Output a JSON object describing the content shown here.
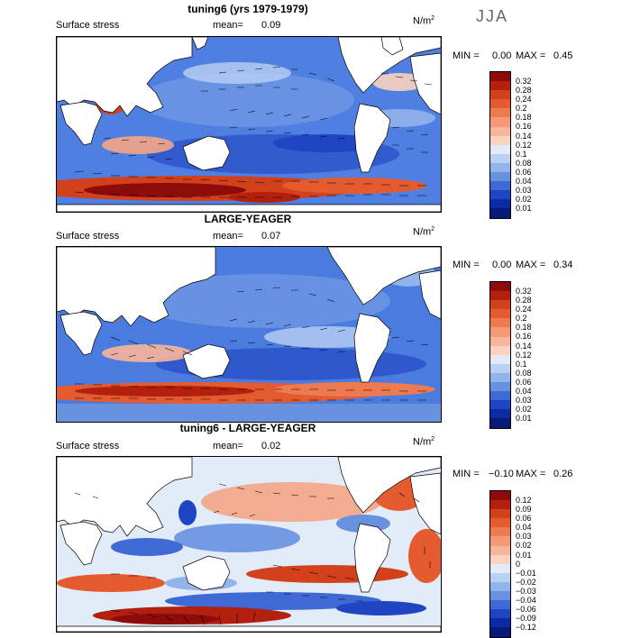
{
  "season": "JJA",
  "panels": [
    {
      "title": "tuning6 (yrs 1979-1979)",
      "field": "Surface stress",
      "mean_label": "mean=",
      "mean": "0.09",
      "units": "N/m",
      "units_sup": "2",
      "min_label": "MIN =",
      "min": "0.00",
      "max_label": "MAX =",
      "max": "0.45",
      "scale": "sequential",
      "levels": [
        "0.32",
        "0.28",
        "0.24",
        "0.2",
        "0.18",
        "0.16",
        "0.14",
        "0.12",
        "0.1",
        "0.08",
        "0.06",
        "0.04",
        "0.03",
        "0.02",
        "0.01"
      ],
      "colors": [
        "#8c0c0c",
        "#b3200e",
        "#d2401c",
        "#e55b30",
        "#ee7a52",
        "#f49878",
        "#f7b59b",
        "#f9d3c0",
        "#e2ecf9",
        "#b9d1f3",
        "#91b4ec",
        "#6891e0",
        "#3f69d4",
        "#1f45c2",
        "#0e2aa3",
        "#061a78"
      ]
    },
    {
      "title": "LARGE-YEAGER",
      "field": "Surface stress",
      "mean_label": "mean=",
      "mean": "0.07",
      "units": "N/m",
      "units_sup": "2",
      "min_label": "MIN =",
      "min": "0.00",
      "max_label": "MAX =",
      "max": "0.34",
      "scale": "sequential",
      "levels": [
        "0.32",
        "0.28",
        "0.24",
        "0.2",
        "0.18",
        "0.16",
        "0.14",
        "0.12",
        "0.1",
        "0.08",
        "0.06",
        "0.04",
        "0.03",
        "0.02",
        "0.01"
      ],
      "colors": [
        "#8c0c0c",
        "#b3200e",
        "#d2401c",
        "#e55b30",
        "#ee7a52",
        "#f49878",
        "#f7b59b",
        "#f9d3c0",
        "#e2ecf9",
        "#b9d1f3",
        "#91b4ec",
        "#6891e0",
        "#3f69d4",
        "#1f45c2",
        "#0e2aa3",
        "#061a78"
      ]
    },
    {
      "title": "tuning6 - LARGE-YEAGER",
      "field": "Surface stress",
      "mean_label": "mean=",
      "mean": "0.02",
      "units": "N/m",
      "units_sup": "2",
      "min_label": "MIN =",
      "min": "−0.10",
      "max_label": "MAX =",
      "max": "0.26",
      "scale": "diverging",
      "levels": [
        "0.12",
        "0.09",
        "0.06",
        "0.04",
        "0.03",
        "0.02",
        "0.01",
        "0",
        "−0.01",
        "−0.02",
        "−0.03",
        "−0.04",
        "−0.06",
        "−0.09",
        "−0.12"
      ],
      "colors": [
        "#8c0c0c",
        "#b3200e",
        "#d2401c",
        "#e55b30",
        "#ee7a52",
        "#f49878",
        "#f7b59b",
        "#f9d3c0",
        "#e2ecf9",
        "#b9d1f3",
        "#91b4ec",
        "#6891e0",
        "#3f69d4",
        "#1f45c2",
        "#0e2aa3",
        "#061a78"
      ]
    }
  ]
}
